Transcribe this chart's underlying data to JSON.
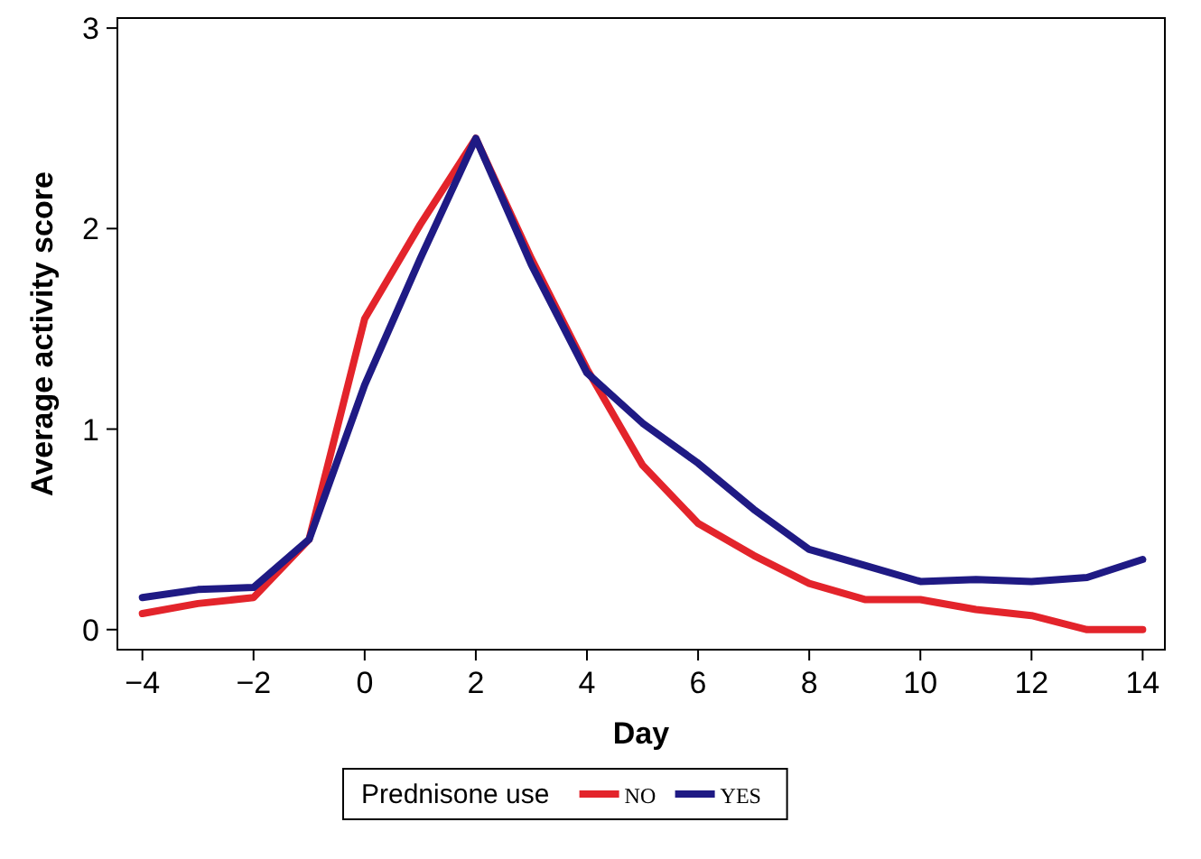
{
  "chart_data": {
    "type": "line",
    "xlabel": "Day",
    "ylabel": "Average activity score",
    "legend_title": "Prednisone use",
    "legend": "bottom",
    "grid": false,
    "marker": "none",
    "line_style": "solid",
    "x": [
      -4,
      -3,
      -2,
      -1,
      0,
      1,
      2,
      3,
      4,
      5,
      6,
      7,
      8,
      9,
      10,
      11,
      12,
      13,
      14
    ],
    "xlim": [
      -4.45,
      14.4
    ],
    "xticks": [
      -4,
      -2,
      0,
      2,
      4,
      6,
      8,
      10,
      12,
      14
    ],
    "ylim": [
      -0.1,
      3.05
    ],
    "yticks": [
      0,
      1,
      2,
      3
    ],
    "series": [
      {
        "name": "NO",
        "color": "#e3242b",
        "values": [
          0.08,
          0.13,
          0.16,
          0.45,
          1.55,
          2.02,
          2.45,
          1.85,
          1.3,
          0.82,
          0.53,
          0.37,
          0.23,
          0.15,
          0.15,
          0.1,
          0.07,
          0.0,
          0.0
        ]
      },
      {
        "name": "YES",
        "color": "#1f1a84",
        "values": [
          0.16,
          0.2,
          0.21,
          0.45,
          1.22,
          1.85,
          2.45,
          1.82,
          1.28,
          1.03,
          0.83,
          0.6,
          0.4,
          0.32,
          0.24,
          0.25,
          0.24,
          0.26,
          0.35
        ]
      }
    ]
  }
}
